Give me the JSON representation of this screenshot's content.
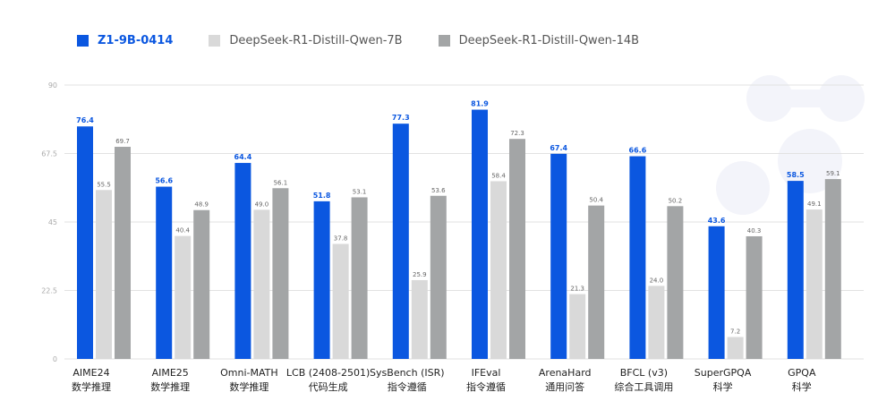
{
  "chart_data": {
    "type": "bar",
    "categories": [
      [
        "AIME24",
        "数学推理"
      ],
      [
        "AIME25",
        "数学推理"
      ],
      [
        "Omni-MATH",
        "数学推理"
      ],
      [
        "LCB (2408-2501)",
        "代码生成"
      ],
      [
        "SysBench (ISR)",
        "指令遵循"
      ],
      [
        "IFEval",
        "指令遵循"
      ],
      [
        "ArenaHard",
        "通用问答"
      ],
      [
        "BFCL (v3)",
        "综合工具调用"
      ],
      [
        "SuperGPQA",
        "科学"
      ],
      [
        "GPQA",
        "科学"
      ]
    ],
    "series": [
      {
        "name": "Z1-9B-0414",
        "color": "#0b57e0",
        "label_color": "#0b57e0",
        "values": [
          76.4,
          56.6,
          64.4,
          51.8,
          77.3,
          81.9,
          67.4,
          66.6,
          43.6,
          58.5
        ]
      },
      {
        "name": "DeepSeek-R1-Distill-Qwen-7B",
        "color": "#d9d9d9",
        "label_color": "#666666",
        "values": [
          55.5,
          40.4,
          49.0,
          37.8,
          25.9,
          58.4,
          21.3,
          24.0,
          7.2,
          49.1
        ]
      },
      {
        "name": "DeepSeek-R1-Distill-Qwen-14B",
        "color": "#a3a5a6",
        "label_color": "#666666",
        "values": [
          69.7,
          48.9,
          56.1,
          53.1,
          53.6,
          72.3,
          50.4,
          50.2,
          40.3,
          59.1
        ]
      }
    ],
    "yticks": [
      0,
      22.5,
      45,
      67.5,
      90
    ],
    "ylim": [
      0,
      90
    ],
    "grid": true,
    "legend_position": "top-left"
  }
}
